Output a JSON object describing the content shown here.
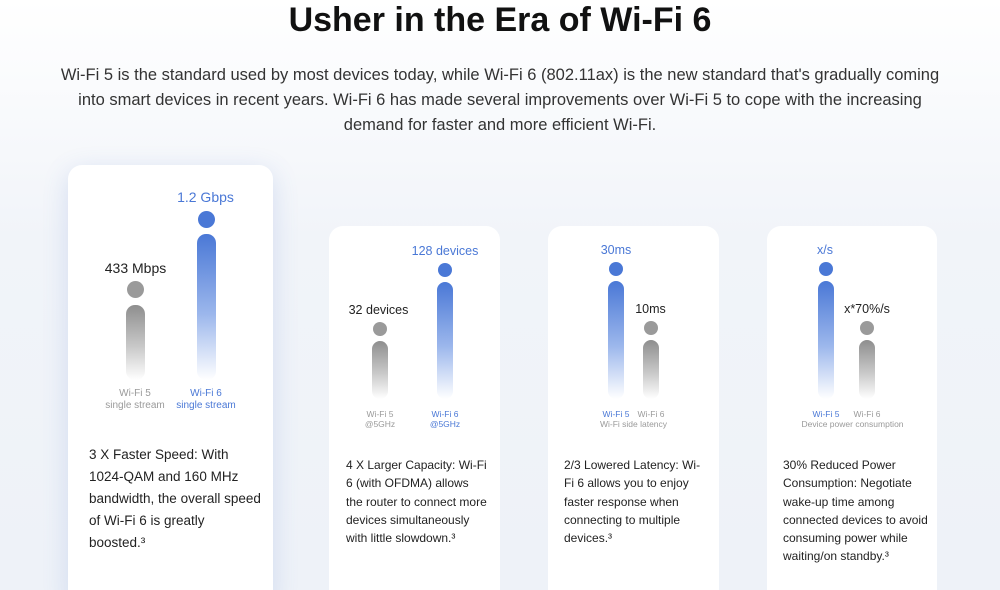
{
  "header": {
    "title": "Usher in the Era of Wi-Fi 6",
    "subtitle": "Wi-Fi 5 is the standard used by most devices today, while Wi-Fi 6 (802.11ax) is the new standard that's gradually coming into smart devices in recent years. Wi-Fi 6 has made several improvements over Wi-Fi 5 to cope with the increasing demand for faster and more efficient Wi-Fi."
  },
  "colors": {
    "accent": "#4a78d6",
    "grey": "#9a9a9a"
  },
  "cards": [
    {
      "wifi5_value": "433 Mbps",
      "wifi6_value": "1.2 Gbps",
      "wifi5_caption_1": "Wi-Fi 5",
      "wifi5_caption_2": "single stream",
      "wifi6_caption_1": "Wi-Fi 6",
      "wifi6_caption_2": "single stream",
      "description": "3 X Faster Speed: With 1024-QAM and 160 MHz bandwidth, the overall speed of Wi-Fi 6 is greatly boosted.³"
    },
    {
      "wifi5_value": "32 devices",
      "wifi6_value": "128 devices",
      "wifi5_caption_1": "Wi-Fi 5",
      "wifi5_caption_2": "@5GHz",
      "wifi6_caption_1": "Wi-Fi 6",
      "wifi6_caption_2": "@5GHz",
      "description": "4 X Larger Capacity: Wi-Fi 6 (with OFDMA) allows the router to connect more devices simultaneously with little slowdown.³"
    },
    {
      "wifi5_value": "30ms",
      "wifi6_value": "10ms",
      "wifi5_caption_1": "Wi-Fi 5",
      "wifi6_caption_1": "Wi-Fi 6",
      "shared_caption": "Wi-Fi side latency",
      "description": "2/3 Lowered Latency: Wi-Fi 6 allows you to enjoy faster response when connecting to multiple devices.³"
    },
    {
      "wifi5_value": "x/s",
      "wifi6_value": "x*70%/s",
      "wifi5_caption_1": "Wi-Fi 5",
      "wifi6_caption_1": "Wi-Fi 6",
      "shared_caption": "Device power consumption",
      "description": "30% Reduced Power Consumption: Negotiate wake-up time among connected devices to avoid consuming power while waiting/on standby.³"
    }
  ]
}
